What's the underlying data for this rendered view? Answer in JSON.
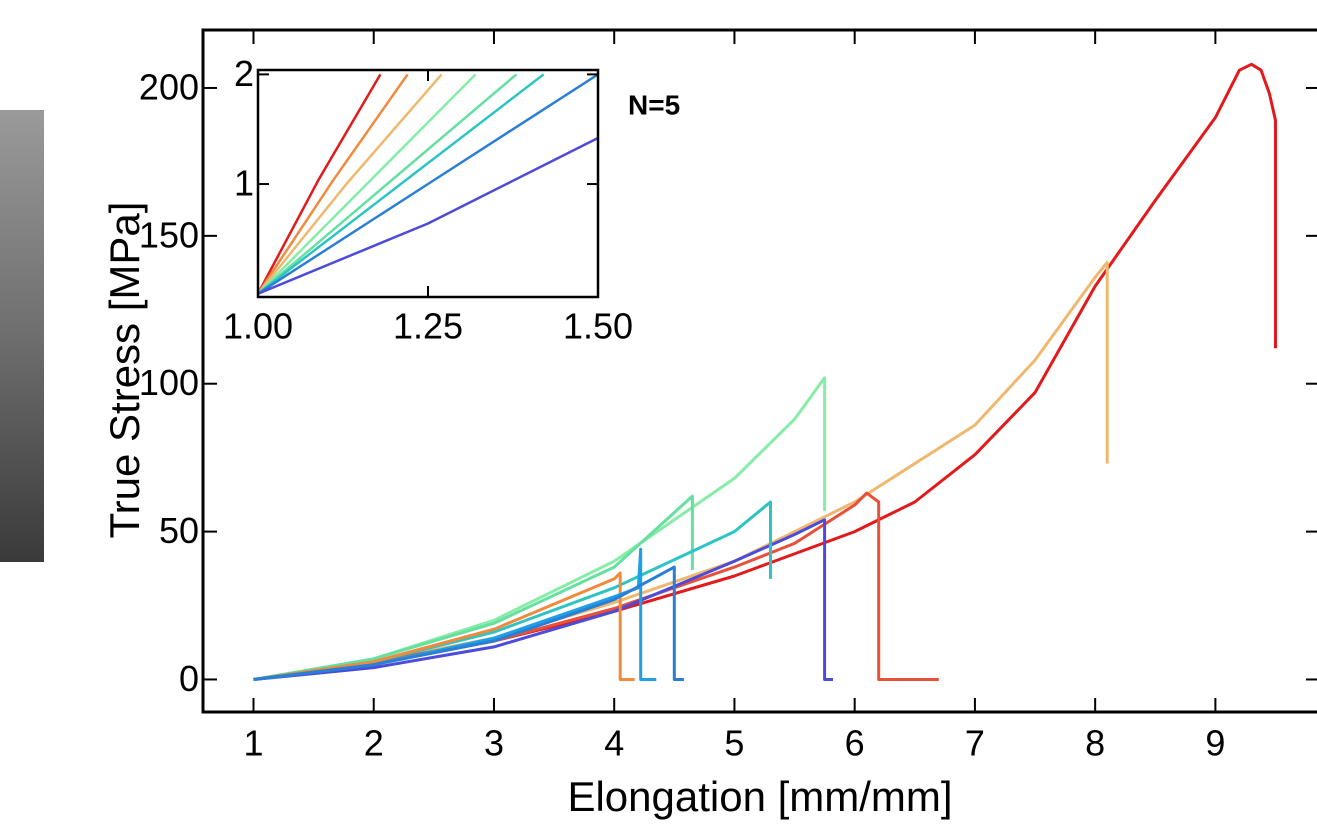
{
  "chart_data": [
    {
      "type": "line",
      "xlabel": "Elongation [mm/mm]",
      "ylabel": "True Stress [MPa]",
      "annotation": "N=5",
      "xlim": [
        0.58,
        9.87
      ],
      "ylim": [
        -11,
        219.6
      ],
      "xticks": [
        1,
        2,
        3,
        4,
        5,
        6,
        7,
        8,
        9
      ],
      "yticks": [
        0,
        50,
        100,
        150,
        200
      ],
      "series": [
        {
          "color": "#e31a1c",
          "x": [
            1,
            1.5,
            2,
            3,
            4,
            5,
            6,
            6.5,
            7,
            7.5,
            8,
            8.5,
            9,
            9.2,
            9.3,
            9.38,
            9.45,
            9.5,
            9.5
          ],
          "values": [
            0,
            3,
            6,
            13,
            23,
            35,
            50,
            60,
            76,
            97,
            133,
            162,
            190,
            206,
            208,
            206,
            198,
            189,
            112
          ]
        },
        {
          "color": "#f0b86e",
          "x": [
            1,
            2,
            3,
            4,
            5,
            6,
            7,
            7.5,
            8,
            8.1,
            8.1
          ],
          "values": [
            0,
            6,
            14,
            26,
            40,
            60,
            86,
            108,
            136,
            141,
            73
          ]
        },
        {
          "color": "#e8503a",
          "x": [
            1,
            2,
            3,
            4,
            5,
            5.5,
            6,
            6.1,
            6.2,
            6.2,
            6.7
          ],
          "values": [
            0,
            6,
            13,
            24,
            38,
            46,
            59,
            63,
            60,
            0,
            0
          ]
        },
        {
          "color": "#4b4bdc",
          "x": [
            1,
            2,
            3,
            4,
            5,
            5.5,
            5.75,
            5.75,
            5.82
          ],
          "values": [
            0,
            4,
            11,
            23,
            40,
            49,
            54,
            0,
            0
          ]
        },
        {
          "color": "#86eca8",
          "x": [
            1,
            2,
            3,
            4,
            5,
            5.5,
            5.75,
            5.75
          ],
          "values": [
            0,
            7,
            20,
            40,
            68,
            88,
            102,
            57
          ]
        },
        {
          "color": "#66e0a0",
          "x": [
            1,
            2,
            3,
            4,
            4.65,
            4.65
          ],
          "values": [
            0,
            7,
            19,
            38,
            62,
            37
          ]
        },
        {
          "color": "#2ec4c4",
          "x": [
            1,
            2,
            3,
            4,
            5,
            5.3,
            5.3
          ],
          "values": [
            0,
            6,
            16,
            31,
            50,
            60,
            34
          ]
        },
        {
          "color": "#f08a3c",
          "x": [
            1,
            2,
            3,
            4,
            4.05,
            4.05,
            4.17
          ],
          "values": [
            0,
            6,
            17,
            34,
            36,
            0,
            0
          ]
        },
        {
          "color": "#1ea0e6",
          "x": [
            1,
            2,
            3,
            4,
            4.2,
            4.22,
            4.22,
            4.35
          ],
          "values": [
            0,
            5,
            14,
            28,
            31,
            44,
            0,
            0
          ]
        },
        {
          "color": "#2a7fd4",
          "x": [
            1,
            2,
            3,
            4,
            4.5,
            4.5,
            4.58
          ],
          "values": [
            0,
            5,
            13,
            27,
            38,
            0,
            0
          ]
        }
      ]
    },
    {
      "type": "line",
      "xlim": [
        1,
        1.5
      ],
      "ylim": [
        -0.03,
        2.04
      ],
      "xticks": [
        {
          "value": 1,
          "label": "1.00"
        },
        {
          "value": 1.25,
          "label": "1.25"
        },
        {
          "value": 1.5,
          "label": "1.50"
        }
      ],
      "yticks": [
        1,
        2
      ],
      "series": [
        {
          "color": "#e31a1c",
          "x": [
            1,
            1.09,
            1.18
          ],
          "values": [
            0,
            1.05,
            2
          ]
        },
        {
          "color": "#f08a3c",
          "x": [
            1,
            1.11,
            1.22
          ],
          "values": [
            0,
            1.03,
            2
          ]
        },
        {
          "color": "#f0b86e",
          "x": [
            1,
            1.13,
            1.27
          ],
          "values": [
            0,
            1,
            2
          ]
        },
        {
          "color": "#86eca8",
          "x": [
            1,
            1.16,
            1.32
          ],
          "values": [
            0,
            1,
            2
          ]
        },
        {
          "color": "#66e0a0",
          "x": [
            1,
            1.19,
            1.38
          ],
          "values": [
            0,
            1,
            2
          ]
        },
        {
          "color": "#2ec4c4",
          "x": [
            1,
            1.21,
            1.42
          ],
          "values": [
            0,
            1,
            2
          ]
        },
        {
          "color": "#2a7fd4",
          "x": [
            1,
            1.25,
            1.5
          ],
          "values": [
            0,
            1,
            2
          ]
        },
        {
          "color": "#4b4bdc",
          "x": [
            1,
            1.25,
            1.5
          ],
          "values": [
            0,
            0.64,
            1.42
          ]
        }
      ]
    }
  ]
}
